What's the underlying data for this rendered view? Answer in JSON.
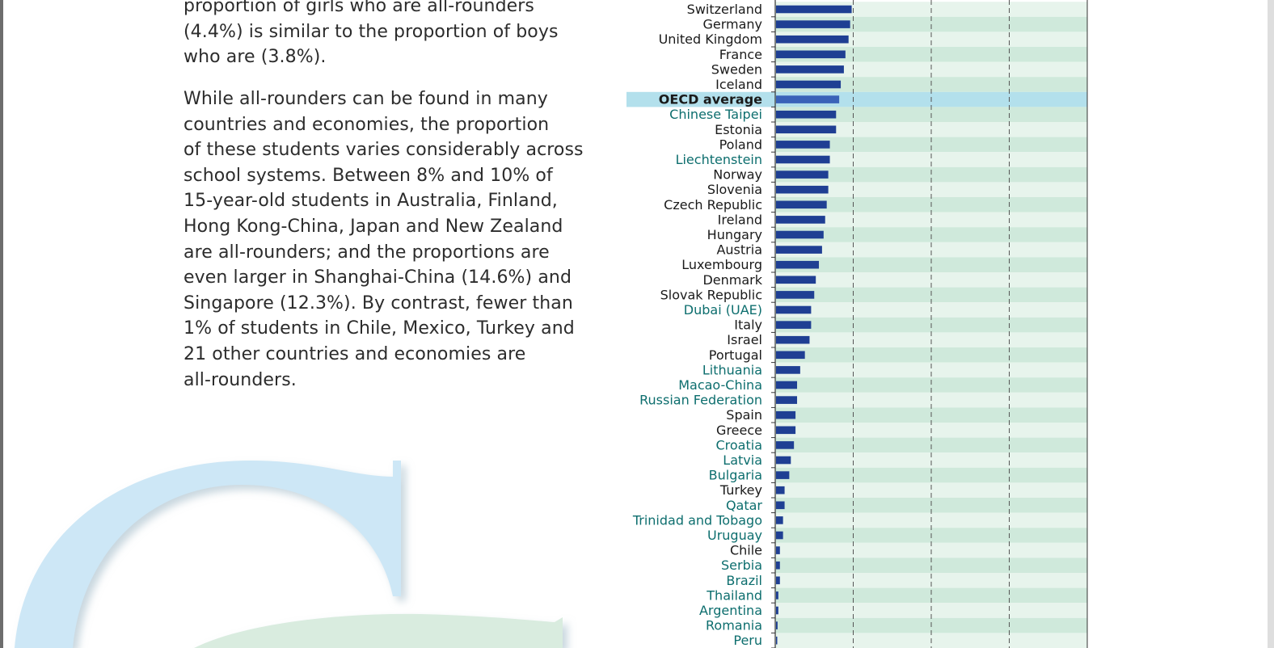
{
  "text": {
    "para1_lines": [
      "proportion of girls who are all-rounders",
      "(4.4%) is similar to the proportion of boys",
      "who are (3.8%)."
    ],
    "para2_lines": [
      "While all-rounders can be found in many",
      "countries and economies, the proportion",
      "of these students varies considerably across",
      "school systems. Between 8% and 10% of",
      "15-year-old students in Australia, Finland,",
      "Hong Kong-China, Japan and New Zealand",
      "are all-rounders; and the proportions are",
      "even larger in Shanghai-China (14.6%) and",
      "Singapore (12.3%). By contrast, fewer than",
      "1% of students in Chile, Mexico, Turkey and",
      "21 other countries and economies are",
      "all-rounders."
    ]
  },
  "colors": {
    "bar": "#1f3f93",
    "oecd_bar": "#3a63b8",
    "row_light": "#e7f4ec",
    "row_dark": "#cfe9db",
    "highlight": "#b3e0ec",
    "label_oecd": "#1a1a1a",
    "label_partner": "#0d6e6e",
    "gridline": "#555555",
    "letter_blue": "#cde7f6",
    "letter_green": "#d9ecdf"
  },
  "chart_data": {
    "type": "bar",
    "orientation": "horizontal",
    "title": "",
    "xlabel": "",
    "ylabel": "",
    "xlim": [
      0,
      20
    ],
    "gridlines_at": [
      5,
      10,
      15
    ],
    "categories": [
      {
        "name": "Switzerland",
        "value": 4.9,
        "group": "oecd"
      },
      {
        "name": "Germany",
        "value": 4.8,
        "group": "oecd"
      },
      {
        "name": "United Kingdom",
        "value": 4.7,
        "group": "oecd"
      },
      {
        "name": "France",
        "value": 4.5,
        "group": "oecd"
      },
      {
        "name": "Sweden",
        "value": 4.4,
        "group": "oecd"
      },
      {
        "name": "Iceland",
        "value": 4.2,
        "group": "oecd"
      },
      {
        "name": "OECD average",
        "value": 4.1,
        "group": "average"
      },
      {
        "name": "Chinese Taipei",
        "value": 3.9,
        "group": "partner"
      },
      {
        "name": "Estonia",
        "value": 3.9,
        "group": "oecd"
      },
      {
        "name": "Poland",
        "value": 3.5,
        "group": "oecd"
      },
      {
        "name": "Liechtenstein",
        "value": 3.5,
        "group": "partner"
      },
      {
        "name": "Norway",
        "value": 3.4,
        "group": "oecd"
      },
      {
        "name": "Slovenia",
        "value": 3.4,
        "group": "oecd"
      },
      {
        "name": "Czech Republic",
        "value": 3.3,
        "group": "oecd"
      },
      {
        "name": "Ireland",
        "value": 3.2,
        "group": "oecd"
      },
      {
        "name": "Hungary",
        "value": 3.1,
        "group": "oecd"
      },
      {
        "name": "Austria",
        "value": 3.0,
        "group": "oecd"
      },
      {
        "name": "Luxembourg",
        "value": 2.8,
        "group": "oecd"
      },
      {
        "name": "Denmark",
        "value": 2.6,
        "group": "oecd"
      },
      {
        "name": "Slovak Republic",
        "value": 2.5,
        "group": "oecd"
      },
      {
        "name": "Dubai (UAE)",
        "value": 2.3,
        "group": "partner"
      },
      {
        "name": "Italy",
        "value": 2.3,
        "group": "oecd"
      },
      {
        "name": "Israel",
        "value": 2.2,
        "group": "oecd"
      },
      {
        "name": "Portugal",
        "value": 1.9,
        "group": "oecd"
      },
      {
        "name": "Lithuania",
        "value": 1.6,
        "group": "partner"
      },
      {
        "name": "Macao-China",
        "value": 1.4,
        "group": "partner"
      },
      {
        "name": "Russian Federation",
        "value": 1.4,
        "group": "partner"
      },
      {
        "name": "Spain",
        "value": 1.3,
        "group": "oecd"
      },
      {
        "name": "Greece",
        "value": 1.3,
        "group": "oecd"
      },
      {
        "name": "Croatia",
        "value": 1.2,
        "group": "partner"
      },
      {
        "name": "Latvia",
        "value": 1.0,
        "group": "partner"
      },
      {
        "name": "Bulgaria",
        "value": 0.9,
        "group": "partner"
      },
      {
        "name": "Turkey",
        "value": 0.6,
        "group": "oecd"
      },
      {
        "name": "Qatar",
        "value": 0.6,
        "group": "partner"
      },
      {
        "name": "Trinidad and Tobago",
        "value": 0.5,
        "group": "partner"
      },
      {
        "name": "Uruguay",
        "value": 0.5,
        "group": "partner"
      },
      {
        "name": "Chile",
        "value": 0.3,
        "group": "oecd"
      },
      {
        "name": "Serbia",
        "value": 0.3,
        "group": "partner"
      },
      {
        "name": "Brazil",
        "value": 0.3,
        "group": "partner"
      },
      {
        "name": "Thailand",
        "value": 0.2,
        "group": "partner"
      },
      {
        "name": "Argentina",
        "value": 0.2,
        "group": "partner"
      },
      {
        "name": "Romania",
        "value": 0.15,
        "group": "partner"
      },
      {
        "name": "Peru",
        "value": 0.1,
        "group": "partner"
      }
    ]
  }
}
